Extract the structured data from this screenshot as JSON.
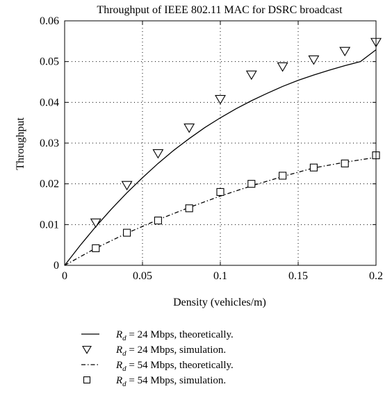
{
  "chart_data": {
    "type": "line",
    "title": "Throughput of IEEE 802.11 MAC for DSRC broadcast",
    "xlabel": "Density (vehicles/m)",
    "ylabel": "Throughput",
    "xlim": [
      0,
      0.2
    ],
    "ylim": [
      0,
      0.06
    ],
    "xticks": [
      "0",
      "0.05",
      "0.1",
      "0.15",
      "0.2"
    ],
    "yticks": [
      "0",
      "0.01",
      "0.02",
      "0.03",
      "0.04",
      "0.05",
      "0.06"
    ],
    "grid": true,
    "legend_position": "bottom",
    "series": [
      {
        "name": "R_d = 24 Mbps, theoretically.",
        "style": "solid-line",
        "x": [
          0,
          0.01,
          0.02,
          0.03,
          0.04,
          0.05,
          0.06,
          0.07,
          0.08,
          0.09,
          0.1,
          0.11,
          0.12,
          0.13,
          0.14,
          0.15,
          0.16,
          0.17,
          0.18,
          0.19,
          0.2
        ],
        "values": [
          0,
          0.0049,
          0.0095,
          0.0138,
          0.0178,
          0.0215,
          0.025,
          0.0282,
          0.0311,
          0.0338,
          0.0362,
          0.0384,
          0.0404,
          0.0422,
          0.0439,
          0.0454,
          0.0467,
          0.0479,
          0.049,
          0.05,
          0.0529
        ]
      },
      {
        "name": "R_d = 24 Mbps, simulation.",
        "style": "triangle-down-marker",
        "x": [
          0.02,
          0.04,
          0.06,
          0.08,
          0.1,
          0.12,
          0.14,
          0.16,
          0.18,
          0.2
        ],
        "values": [
          0.0105,
          0.0197,
          0.0275,
          0.0338,
          0.0408,
          0.0468,
          0.0488,
          0.0505,
          0.0526,
          0.0548
        ]
      },
      {
        "name": "R_d = 54 Mbps, theoretically.",
        "style": "dash-dot-line",
        "x": [
          0,
          0.02,
          0.04,
          0.06,
          0.08,
          0.1,
          0.12,
          0.14,
          0.16,
          0.18,
          0.2
        ],
        "values": [
          0,
          0.0042,
          0.0079,
          0.0112,
          0.0142,
          0.017,
          0.0195,
          0.0218,
          0.0239,
          0.0253,
          0.0265
        ]
      },
      {
        "name": "R_d = 54 Mbps, simulation.",
        "style": "square-marker",
        "x": [
          0.02,
          0.04,
          0.06,
          0.08,
          0.1,
          0.12,
          0.14,
          0.16,
          0.18,
          0.2
        ],
        "values": [
          0.0042,
          0.008,
          0.011,
          0.014,
          0.018,
          0.02,
          0.022,
          0.024,
          0.025,
          0.027
        ]
      }
    ],
    "legend": [
      {
        "var": "R",
        "sub": "d",
        "rest": " = 24 Mbps, theoretically."
      },
      {
        "var": "R",
        "sub": "d",
        "rest": " = 24 Mbps, simulation."
      },
      {
        "var": "R",
        "sub": "d",
        "rest": " = 54 Mbps, theoretically."
      },
      {
        "var": "R",
        "sub": "d",
        "rest": " = 54 Mbps, simulation."
      }
    ]
  }
}
